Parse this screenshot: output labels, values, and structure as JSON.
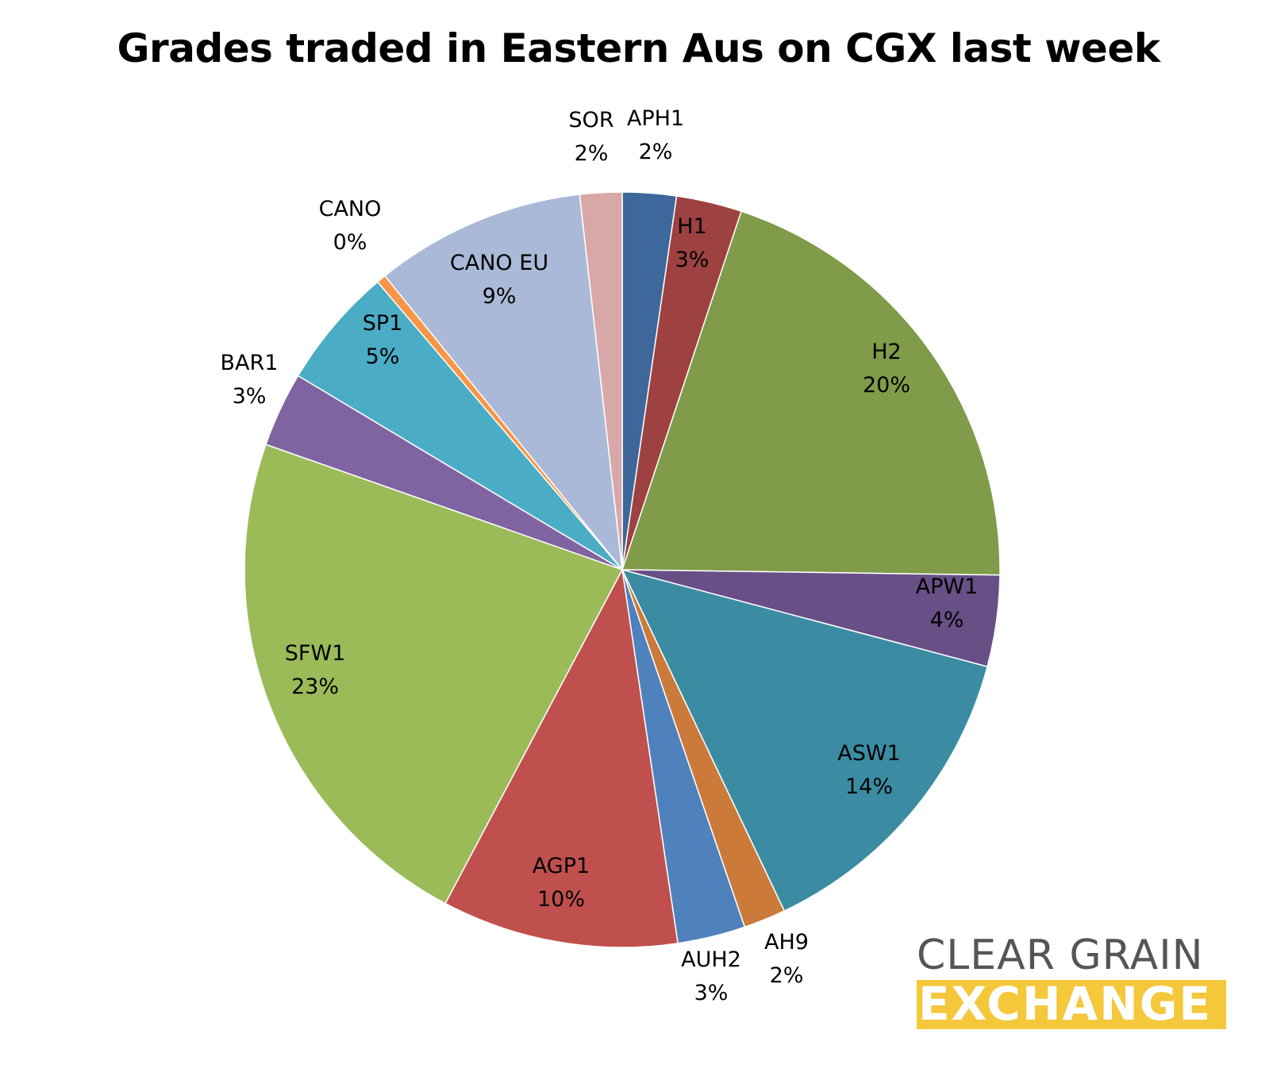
{
  "chart_data": {
    "type": "pie",
    "title": "Grades traded in Eastern Aus on CGX last week",
    "start_angle_deg": 0,
    "direction": "clockwise",
    "slices": [
      {
        "name": "APH1",
        "value": 2.3,
        "label_pct": "2%",
        "color": "#3e689b"
      },
      {
        "name": "H1",
        "value": 2.8,
        "label_pct": "3%",
        "color": "#9e4141"
      },
      {
        "name": "H2",
        "value": 20.1,
        "label_pct": "20%",
        "color": "#809b4a"
      },
      {
        "name": "APW1",
        "value": 3.9,
        "label_pct": "4%",
        "color": "#684f86"
      },
      {
        "name": "ASW1",
        "value": 13.8,
        "label_pct": "14%",
        "color": "#3b8ca2"
      },
      {
        "name": "AH9",
        "value": 1.8,
        "label_pct": "2%",
        "color": "#cb7a3a"
      },
      {
        "name": "AUH2",
        "value": 2.9,
        "label_pct": "3%",
        "color": "#4f81bd"
      },
      {
        "name": "AGP1",
        "value": 10.1,
        "label_pct": "10%",
        "color": "#c0504d"
      },
      {
        "name": "SFW1",
        "value": 22.6,
        "label_pct": "23%",
        "color": "#9bbb59"
      },
      {
        "name": "BAR1",
        "value": 3.2,
        "label_pct": "3%",
        "color": "#8064a2"
      },
      {
        "name": "SP1",
        "value": 5.2,
        "label_pct": "5%",
        "color": "#4bacc6"
      },
      {
        "name": "CANO",
        "value": 0.4,
        "label_pct": "0%",
        "color": "#f79646"
      },
      {
        "name": "CANO EU",
        "value": 9.0,
        "label_pct": "9%",
        "color": "#aab9d7"
      },
      {
        "name": "SOR",
        "value": 1.8,
        "label_pct": "2%",
        "color": "#d8a8a8"
      }
    ]
  },
  "logo": {
    "line1": "CLEAR GRAIN",
    "line2": "EXCHANGE"
  }
}
